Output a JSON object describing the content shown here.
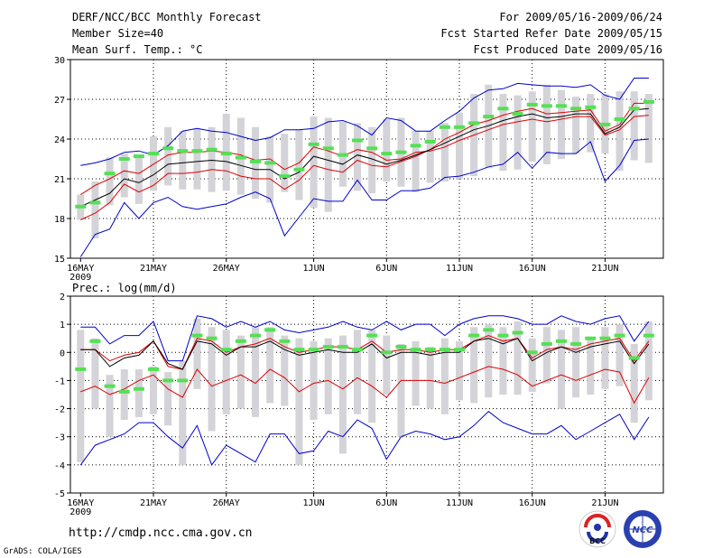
{
  "header": {
    "title": "DERF/NCC/BCC Monthly Forecast",
    "member_size": "Member Size=40",
    "variable": "Mean Surf. Temp.: °C",
    "period": "For 2009/05/16-2009/06/24",
    "start_date": "Fcst Started Refer Date 2009/05/15",
    "produced_date": "Fcst Produced Date 2009/05/16"
  },
  "footer": {
    "url": "http://cmdp.ncc.cma.gov.cn",
    "credit": "GrADS: COLA/IGES",
    "logo_bcc": "BCC",
    "logo_ncc": "NCC"
  },
  "colors": {
    "bar": "#d3d3d8",
    "mean": "#55e055",
    "envelope": "#0000cc",
    "spread": "#dd0000",
    "median": "#000000"
  },
  "chart_data": [
    {
      "type": "box-plume",
      "id": "temp",
      "title": "Mean Surf. Temp.: °C",
      "ylabel": "°C",
      "ylim": [
        15,
        30
      ],
      "yticks": [
        "15",
        "18",
        "21",
        "24",
        "27",
        "30"
      ],
      "ytick_values": [
        15,
        18,
        21,
        24,
        27,
        30
      ],
      "xticks": [
        "16MAY",
        "21MAY",
        "26MAY",
        "1JUN",
        "6JUN",
        "11JUN",
        "16JUN",
        "21JUN"
      ],
      "xtick_days": [
        1,
        6,
        11,
        17,
        22,
        27,
        32,
        37
      ],
      "year_label": "2009",
      "grid": true,
      "days": 40,
      "bar_low": [
        17.9,
        16.5,
        19.0,
        19.6,
        19.1,
        20.1,
        20.5,
        20.2,
        20.2,
        20.0,
        20.1,
        19.8,
        19.5,
        19.2,
        20.0,
        19.4,
        18.8,
        18.5,
        20.4,
        20.1,
        19.9,
        20.8,
        20.4,
        20.0,
        20.7,
        20.8,
        21.0,
        21.2,
        21.8,
        21.6,
        21.7,
        22.3,
        22.1,
        22.5,
        22.9,
        23.0,
        22.9,
        21.6,
        22.4,
        22.2
      ],
      "bar_high": [
        19.8,
        20.8,
        22.6,
        22.9,
        22.6,
        24.2,
        24.9,
        24.6,
        24.8,
        24.9,
        25.9,
        25.6,
        24.9,
        24.2,
        24.4,
        24.7,
        25.7,
        25.6,
        25.3,
        25.2,
        24.9,
        25.5,
        25.6,
        24.6,
        24.6,
        25.2,
        26.0,
        27.4,
        28.1,
        27.4,
        27.3,
        27.6,
        28.1,
        27.7,
        27.2,
        27.4,
        27.4,
        27.6,
        27.6,
        27.4
      ],
      "mean": [
        18.9,
        19.2,
        21.4,
        22.5,
        22.7,
        22.9,
        23.3,
        23.1,
        23.1,
        23.2,
        22.9,
        22.6,
        22.3,
        22.2,
        21.2,
        21.7,
        23.6,
        23.3,
        22.8,
        23.9,
        23.3,
        22.9,
        23.0,
        23.5,
        23.8,
        24.9,
        24.9,
        25.2,
        25.7,
        26.3,
        25.9,
        26.6,
        26.5,
        26.5,
        26.3,
        26.4,
        25.1,
        25.5,
        26.3,
        26.8
      ],
      "envelope_high": [
        22.0,
        22.2,
        22.5,
        23.0,
        23.1,
        22.8,
        23.5,
        24.6,
        24.8,
        24.6,
        24.5,
        24.2,
        23.9,
        24.1,
        24.7,
        24.7,
        24.8,
        25.3,
        25.4,
        25.0,
        24.3,
        25.6,
        25.4,
        24.6,
        24.6,
        25.4,
        26.1,
        27.1,
        27.7,
        27.8,
        28.2,
        28.1,
        28.0,
        28.0,
        27.9,
        28.1,
        27.3,
        27.0,
        28.6,
        28.6
      ],
      "envelope_low": [
        15.1,
        16.8,
        17.2,
        19.2,
        18.0,
        19.2,
        19.6,
        18.9,
        18.7,
        18.9,
        19.1,
        19.6,
        20.0,
        19.5,
        16.7,
        18.1,
        19.5,
        19.3,
        19.3,
        20.9,
        19.4,
        19.4,
        20.1,
        20.1,
        20.3,
        21.1,
        21.2,
        21.5,
        21.9,
        22.1,
        23.0,
        21.8,
        23.0,
        22.9,
        22.9,
        23.8,
        20.8,
        22.0,
        23.9,
        24.0
      ],
      "spread_high": [
        19.8,
        20.5,
        21.0,
        21.6,
        21.4,
        22.1,
        22.8,
        23.0,
        23.0,
        23.1,
        23.0,
        22.8,
        22.4,
        22.5,
        21.7,
        22.2,
        23.4,
        23.1,
        22.7,
        23.2,
        23.0,
        22.4,
        22.5,
        23.0,
        23.1,
        23.4,
        23.9,
        24.3,
        24.7,
        25.1,
        25.3,
        25.5,
        25.3,
        25.5,
        25.7,
        25.7,
        24.3,
        24.7,
        25.7,
        25.8
      ],
      "spread_low": [
        17.9,
        18.4,
        19.2,
        20.6,
        20.0,
        20.5,
        21.4,
        21.4,
        21.5,
        21.7,
        21.6,
        21.2,
        21.0,
        21.0,
        20.2,
        20.9,
        22.0,
        21.7,
        21.5,
        22.4,
        22.0,
        21.9,
        22.3,
        22.7,
        23.2,
        24.0,
        24.5,
        25.1,
        25.4,
        25.8,
        26.1,
        26.3,
        25.9,
        26.0,
        26.1,
        26.2,
        24.6,
        25.1,
        26.7,
        26.7
      ],
      "median": [
        18.9,
        19.4,
        19.9,
        21.0,
        20.7,
        21.3,
        22.1,
        22.2,
        22.3,
        22.4,
        22.3,
        22.0,
        21.7,
        21.7,
        21.0,
        21.5,
        22.7,
        22.4,
        22.1,
        22.8,
        22.5,
        22.1,
        22.4,
        22.8,
        23.2,
        23.7,
        24.2,
        24.7,
        25.0,
        25.4,
        25.7,
        25.9,
        25.6,
        25.7,
        25.9,
        25.9,
        24.4,
        24.9,
        26.2,
        26.3
      ]
    },
    {
      "type": "box-plume",
      "id": "prec",
      "title": "Prec.: log(mm/d)",
      "ylabel": "log(mm/d)",
      "ylim": [
        -5,
        2
      ],
      "yticks": [
        "-5",
        "-4",
        "-3",
        "-2",
        "-1",
        "0",
        "1",
        "2"
      ],
      "ytick_values": [
        -5,
        -4,
        -3,
        -2,
        -1,
        0,
        1,
        2
      ],
      "xticks": [
        "16MAY",
        "21MAY",
        "26MAY",
        "1JUN",
        "6JUN",
        "11JUN",
        "16JUN",
        "21JUN"
      ],
      "xtick_days": [
        1,
        6,
        11,
        17,
        22,
        27,
        32,
        37
      ],
      "year_label": "2009",
      "grid": true,
      "days": 40,
      "bar_low": [
        -3.9,
        -2.0,
        -3.0,
        -2.4,
        -2.3,
        -2.2,
        -2.6,
        -4.0,
        -1.3,
        -2.8,
        -2.2,
        -2.0,
        -2.3,
        -1.8,
        -1.9,
        -4.0,
        -2.4,
        -2.2,
        -3.6,
        -2.2,
        -2.5,
        -1.5,
        -3.0,
        -1.9,
        -2.0,
        -2.2,
        -1.7,
        -1.8,
        -1.6,
        -1.5,
        -1.5,
        -1.4,
        -1.1,
        -2.0,
        -1.6,
        -1.5,
        -1.3,
        -1.2,
        -2.5,
        -1.7
      ],
      "bar_high": [
        0.8,
        0.5,
        -0.8,
        -0.6,
        -0.6,
        -0.5,
        -0.7,
        -0.3,
        1.2,
        0.9,
        0.8,
        0.6,
        0.9,
        0.9,
        0.6,
        0.5,
        0.4,
        0.5,
        0.6,
        0.8,
        0.8,
        0.6,
        0.3,
        0.4,
        0.2,
        0.5,
        0.4,
        0.9,
        1.0,
        0.9,
        1.1,
        0.5,
        0.9,
        0.8,
        0.9,
        0.5,
        0.9,
        1.0,
        0.3,
        1.1
      ],
      "mean": [
        -0.6,
        0.4,
        -1.2,
        -1.4,
        -1.3,
        -0.6,
        -1.0,
        -1.0,
        0.6,
        0.5,
        0.1,
        0.4,
        0.6,
        0.8,
        0.4,
        0.1,
        0.1,
        0.2,
        0.2,
        0.1,
        0.6,
        0.0,
        0.2,
        0.1,
        0.1,
        0.1,
        0.1,
        0.6,
        0.8,
        0.6,
        0.7,
        0.0,
        0.3,
        0.4,
        0.3,
        0.5,
        0.5,
        0.6,
        -0.2,
        0.6
      ],
      "envelope_high": [
        0.9,
        0.9,
        0.3,
        0.6,
        0.6,
        1.1,
        -0.3,
        -0.3,
        1.3,
        1.2,
        0.9,
        1.1,
        0.9,
        1.1,
        0.8,
        0.7,
        0.8,
        0.9,
        1.1,
        0.9,
        0.8,
        1.1,
        0.8,
        1.0,
        1.0,
        0.6,
        1.0,
        1.2,
        1.3,
        1.3,
        1.2,
        1.0,
        1.0,
        1.3,
        1.1,
        1.0,
        1.2,
        1.3,
        0.4,
        1.1
      ],
      "envelope_low": [
        -4.0,
        -3.3,
        -3.1,
        -2.9,
        -2.5,
        -2.5,
        -3.0,
        -3.4,
        -2.6,
        -4.0,
        -3.3,
        -3.6,
        -3.9,
        -2.9,
        -2.9,
        -3.6,
        -3.5,
        -2.8,
        -3.0,
        -2.4,
        -2.7,
        -3.8,
        -3.0,
        -2.8,
        -2.9,
        -3.1,
        -3.0,
        -2.6,
        -2.1,
        -2.5,
        -2.7,
        -2.9,
        -2.9,
        -2.6,
        -3.1,
        -2.8,
        -2.5,
        -2.2,
        -3.1,
        -2.3
      ],
      "spread_high": [
        0.1,
        0.1,
        -0.3,
        -0.1,
        0.0,
        0.4,
        -0.5,
        -0.6,
        0.5,
        0.4,
        0.0,
        0.2,
        0.3,
        0.5,
        0.2,
        0.0,
        0.1,
        0.2,
        0.2,
        0.1,
        0.4,
        0.0,
        0.1,
        0.1,
        0.0,
        0.1,
        0.1,
        0.4,
        0.6,
        0.4,
        0.5,
        -0.2,
        0.1,
        0.2,
        0.1,
        0.3,
        0.4,
        0.5,
        -0.3,
        0.4
      ],
      "spread_low": [
        -1.4,
        -1.2,
        -1.5,
        -1.3,
        -1.0,
        -0.8,
        -1.3,
        -1.6,
        -0.6,
        -1.2,
        -1.0,
        -0.8,
        -1.1,
        -0.6,
        -0.9,
        -1.4,
        -1.1,
        -1.0,
        -1.3,
        -0.9,
        -1.2,
        -1.6,
        -1.0,
        -1.0,
        -1.0,
        -1.1,
        -0.9,
        -0.7,
        -0.5,
        -0.6,
        -0.8,
        -1.2,
        -1.0,
        -0.8,
        -1.0,
        -0.8,
        -0.6,
        -0.7,
        -1.8,
        -0.9
      ],
      "median": [
        0.1,
        0.1,
        -0.5,
        -0.2,
        -0.1,
        0.4,
        -0.4,
        -0.6,
        0.4,
        0.3,
        -0.1,
        0.2,
        0.2,
        0.4,
        0.1,
        -0.1,
        0.0,
        0.1,
        0.0,
        0.0,
        0.3,
        -0.2,
        0.0,
        0.0,
        -0.1,
        0.0,
        0.0,
        0.4,
        0.5,
        0.3,
        0.5,
        -0.3,
        0.0,
        0.2,
        0.0,
        0.2,
        0.3,
        0.4,
        -0.4,
        0.3
      ]
    }
  ]
}
